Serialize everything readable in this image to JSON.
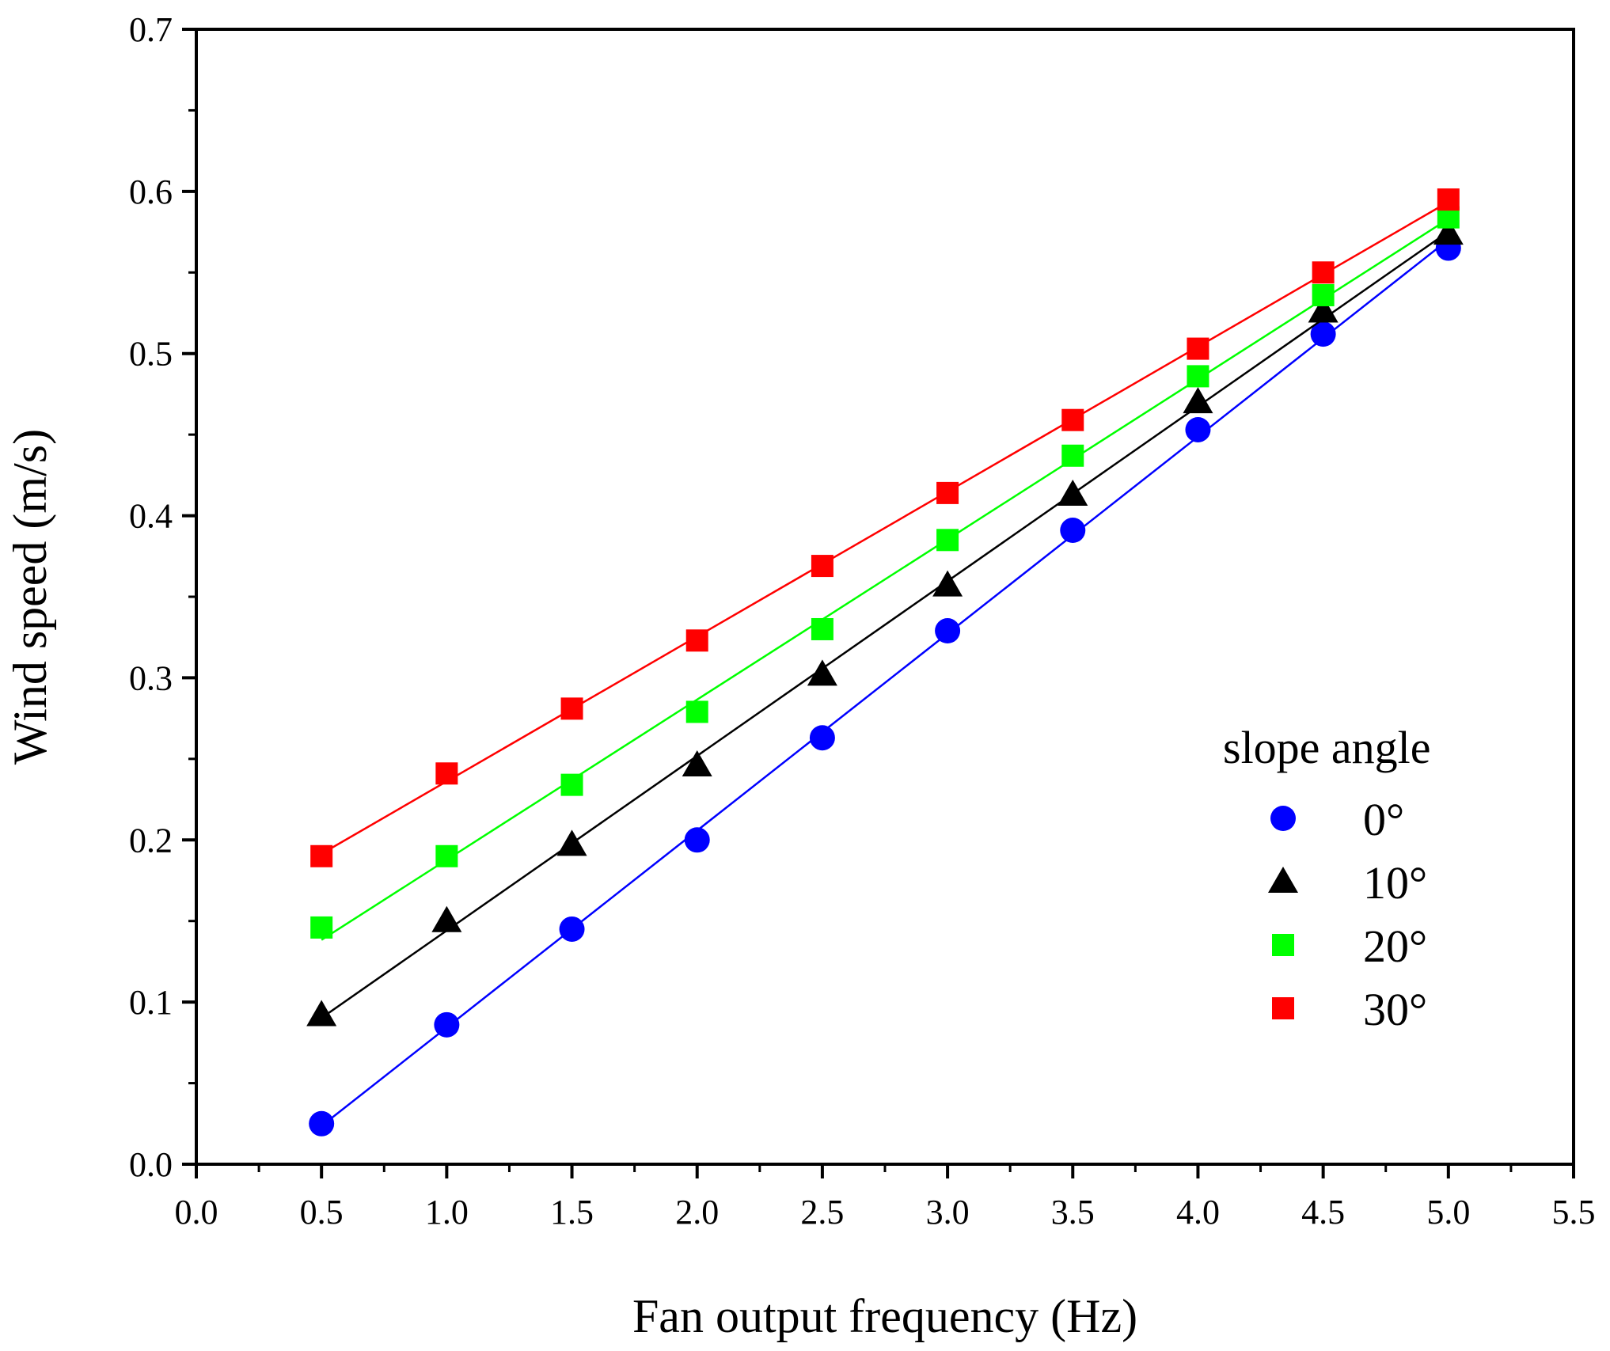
{
  "chart_data": {
    "type": "scatter",
    "title": "",
    "xlabel": "Fan output frequency (Hz)",
    "ylabel": "Wind speed (m/s)",
    "xlim": [
      0.0,
      5.5
    ],
    "ylim": [
      0.0,
      0.7
    ],
    "xticks": [
      "0.0",
      "0.5",
      "1.0",
      "1.5",
      "2.0",
      "2.5",
      "3.0",
      "3.5",
      "4.0",
      "4.5",
      "5.0",
      "5.5"
    ],
    "yticks": [
      "0.0",
      "0.1",
      "0.2",
      "0.3",
      "0.4",
      "0.5",
      "0.6",
      "0.7"
    ],
    "grid": false,
    "legend": {
      "title": "slope angle",
      "position": "right"
    },
    "x": [
      0.5,
      1.0,
      1.5,
      2.0,
      2.5,
      3.0,
      3.5,
      4.0,
      4.5,
      5.0
    ],
    "series": [
      {
        "name": "0°",
        "marker": "circle",
        "color": "#0000ff",
        "values": [
          0.025,
          0.086,
          0.145,
          0.2,
          0.263,
          0.329,
          0.391,
          0.453,
          0.512,
          0.565
        ]
      },
      {
        "name": "10°",
        "marker": "triangle",
        "color": "#000000",
        "values": [
          0.092,
          0.15,
          0.197,
          0.246,
          0.302,
          0.357,
          0.413,
          0.47,
          0.526,
          0.574
        ]
      },
      {
        "name": "20°",
        "marker": "square",
        "color": "#00ff00",
        "values": [
          0.146,
          0.19,
          0.234,
          0.279,
          0.33,
          0.385,
          0.437,
          0.486,
          0.536,
          0.584
        ]
      },
      {
        "name": "30°",
        "marker": "square",
        "color": "#ff0000",
        "values": [
          0.19,
          0.241,
          0.281,
          0.323,
          0.369,
          0.414,
          0.459,
          0.503,
          0.55,
          0.595
        ]
      }
    ]
  }
}
